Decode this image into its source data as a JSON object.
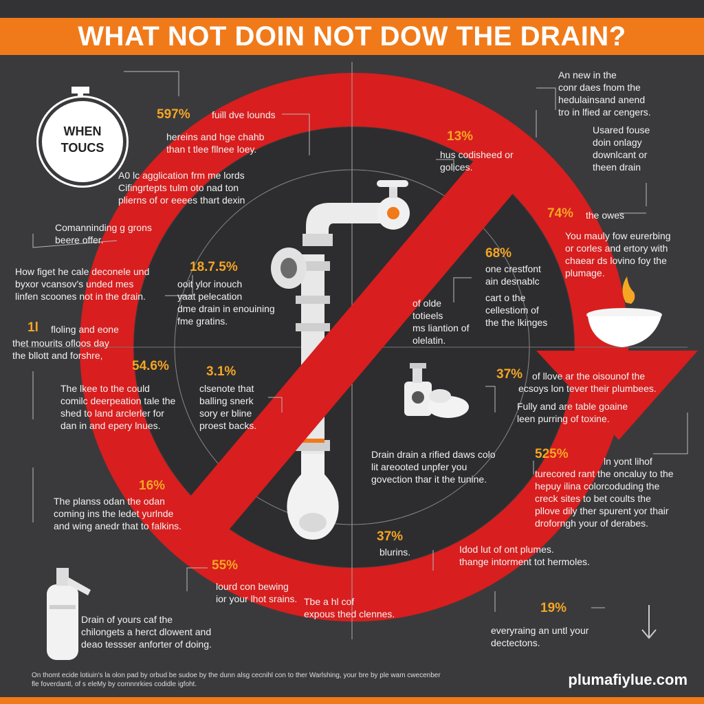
{
  "title": "WHAT NOT DOIN NOT DOW THE DRAIN?",
  "badge": {
    "line1": "WHEN",
    "line2": "TOUCS"
  },
  "colors": {
    "orange": "#f07a1a",
    "red": "#d81e1e",
    "background": "#3a3a3c",
    "accent_pct": "#f5a623"
  },
  "icons": [
    "stopwatch-icon",
    "pipe-illustration",
    "faucet-icon",
    "bowl-icon",
    "flame-icon",
    "soap-bottle-icon",
    "sponge-icon",
    "extinguisher-icon",
    "arrow-down-icon"
  ],
  "stats": [
    {
      "pct": "597%",
      "head": "fuill dve lounds",
      "lines": [
        "hereins and hge chahb",
        "than t tlee fllnee loey."
      ]
    },
    {
      "pct": "",
      "head": "",
      "lines": [
        "A0 lc agglication frm me lords",
        "Cifingrtepts tulm oto nad ton",
        "plierns of or eeees thart dexin"
      ]
    },
    {
      "pct": "",
      "head": "",
      "lines": [
        "Comanninding g grons",
        "beere offer."
      ]
    },
    {
      "pct": "",
      "head": "",
      "lines": [
        "How figet he cale deconele und",
        "byxor vcansov's unded mes",
        "linfen scoones not in the drain."
      ]
    },
    {
      "pct": "18.7.5%",
      "head": "",
      "lines": [
        "ooit ylor inouch",
        "yaat pelecation",
        "dme drain in enouining",
        "fme gratins."
      ]
    },
    {
      "pct": "1l",
      "head": "floling and eone",
      "lines": [
        "thet mourits ofloos day",
        "the bllott and forshre,"
      ]
    },
    {
      "pct": "54.6%",
      "head": "",
      "lines": [
        "The lkee to the could",
        "comilc deerpeation tale the",
        "shed to land arclerler for",
        "dan in and epery lnues."
      ]
    },
    {
      "pct": "3.1%",
      "head": "",
      "lines": [
        "clsenote that",
        "balling snerk",
        "sory er bline",
        "proest backs."
      ]
    },
    {
      "pct": "16%",
      "head": "",
      "lines": [
        "The planss odan the odan",
        "coming ins the ledet yurlnde",
        "and wing anedr that to falkins."
      ]
    },
    {
      "pct": "55%",
      "head": "",
      "lines": [
        "lourd con bewing",
        "ior your lhot srains."
      ]
    },
    {
      "pct": "",
      "head": "",
      "lines": [
        "Drain of yours caf the",
        "chilongets a herct dlowent and",
        "deao tessser anforter of doing."
      ]
    },
    {
      "pct": "",
      "head": "",
      "lines": [
        "Tbe a hl cof",
        "expous thed clennes."
      ]
    },
    {
      "pct": "37%",
      "head": "",
      "lines": [
        "blurins."
      ]
    },
    {
      "pct": "",
      "head": "",
      "lines": [
        "Drain drain a rified daws colo",
        "lit areooted unpfer you",
        "govection thar it the tunine."
      ]
    },
    {
      "pct": "",
      "head": "",
      "lines": [
        "Idod lut of ont plumes.",
        "thange intorment tot hermoles."
      ]
    },
    {
      "pct": "19%",
      "head": "",
      "lines": [
        "everyraing an untl your",
        "dectectons."
      ]
    },
    {
      "pct": "525%",
      "head": "ln yont lihof",
      "lines": [
        "turecored rant the oncaluy to the",
        "hepuy ilina colorcoduding the",
        "creck sites to bet coults the",
        "pllove dily ther spurent yor thair",
        "droforngh your of derabes."
      ]
    },
    {
      "pct": "37%",
      "head": "of llove ar the oisounof the",
      "lines": [
        "ecsoys lon tever their plumbees."
      ]
    },
    {
      "pct": "",
      "head": "",
      "lines": [
        "Fully and are table goaine",
        "leen purring of toxine."
      ]
    },
    {
      "pct": "68%",
      "head": "",
      "lines": [
        "one crestfont",
        "ain desnablc"
      ]
    },
    {
      "pct": "",
      "head": "",
      "lines": [
        "of olde",
        "totieels",
        "ms liantion of",
        "olelatin."
      ]
    },
    {
      "pct": "",
      "head": "",
      "lines": [
        "cart o the",
        "cellestiom of",
        "the the lkinges"
      ]
    },
    {
      "pct": "74%",
      "head": "the owes",
      "lines": [
        "You mauly fow eurerbing",
        "or corles and ertory with",
        "chaear ds lovino foy the",
        "plumage."
      ]
    },
    {
      "pct": "",
      "head": "",
      "lines": [
        "Usared fouse",
        "doin onlagy",
        "downlcant or",
        "theen drain"
      ]
    },
    {
      "pct": "",
      "head": "",
      "lines": [
        "An new in the",
        "conr daes fnom the",
        "hedulainsand anend",
        "tro in lfied ar cengers."
      ]
    },
    {
      "pct": "13%",
      "head": "",
      "lines": [
        "hus codisheed or",
        "golices."
      ]
    }
  ],
  "footer": {
    "text": "On thomt ecide lotiuin's la olon pad by orbud be sudoe by the dunn alsg cecnihl con to ther Warlshing, your bre by ple wam cwecenber fle foverdantl, of s eleMy by comnnrkies codidle igfoht.",
    "brand": "plumafiylue.com"
  }
}
